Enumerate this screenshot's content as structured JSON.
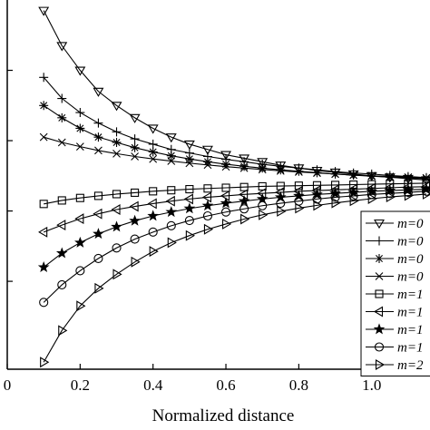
{
  "chart_data": {
    "type": "line",
    "title": "",
    "xlabel": "Normalized distance",
    "ylabel": "",
    "xlim": [
      0,
      1.16
    ],
    "ylim": [
      -0.05,
      1.0
    ],
    "x_ticks": [
      0,
      0.2,
      0.4,
      0.6,
      0.8,
      1.0
    ],
    "x_tick_labels": [
      "0",
      "0.2",
      "0.4",
      "0.6",
      "0.8",
      "1.0"
    ],
    "y_ticks": [
      0.2,
      0.4,
      0.6,
      0.8
    ],
    "grid": false,
    "legend_position": "bottom-right (clipped at right edge)",
    "x": [
      0.1,
      0.15,
      0.2,
      0.25,
      0.3,
      0.35,
      0.4,
      0.45,
      0.5,
      0.55,
      0.6,
      0.65,
      0.7,
      0.75,
      0.8,
      0.85,
      0.9,
      0.95,
      1.0,
      1.05,
      1.1,
      1.15
    ],
    "series": [
      {
        "name": "m=0",
        "marker": "triangle-down",
        "values": [
          0.97,
          0.87,
          0.8,
          0.74,
          0.7,
          0.665,
          0.635,
          0.61,
          0.59,
          0.575,
          0.56,
          0.55,
          0.54,
          0.53,
          0.522,
          0.515,
          0.51,
          0.505,
          0.5,
          0.496,
          0.492,
          0.488
        ]
      },
      {
        "name": "m=0",
        "marker": "plus",
        "values": [
          0.78,
          0.72,
          0.68,
          0.65,
          0.625,
          0.605,
          0.59,
          0.575,
          0.565,
          0.555,
          0.547,
          0.54,
          0.533,
          0.527,
          0.522,
          0.517,
          0.512,
          0.508,
          0.505,
          0.501,
          0.498,
          0.495
        ]
      },
      {
        "name": "m=0",
        "marker": "asterisk",
        "values": [
          0.7,
          0.665,
          0.635,
          0.61,
          0.595,
          0.58,
          0.568,
          0.557,
          0.548,
          0.54,
          0.533,
          0.527,
          0.522,
          0.517,
          0.513,
          0.509,
          0.505,
          0.502,
          0.499,
          0.496,
          0.494,
          0.492
        ]
      },
      {
        "name": "m=0",
        "marker": "x",
        "values": [
          0.61,
          0.595,
          0.583,
          0.572,
          0.563,
          0.555,
          0.548,
          0.542,
          0.536,
          0.531,
          0.526,
          0.522,
          0.518,
          0.514,
          0.511,
          0.508,
          0.505,
          0.502,
          0.5,
          0.498,
          0.496,
          0.494
        ]
      },
      {
        "name": "m=1",
        "marker": "square",
        "values": [
          0.42,
          0.43,
          0.437,
          0.443,
          0.448,
          0.452,
          0.456,
          0.459,
          0.462,
          0.464,
          0.466,
          0.468,
          0.47,
          0.471,
          0.472,
          0.473,
          0.474,
          0.475,
          0.476,
          0.477,
          0.478,
          0.479
        ]
      },
      {
        "name": "m=1",
        "marker": "triangle-left",
        "values": [
          0.34,
          0.36,
          0.378,
          0.392,
          0.404,
          0.413,
          0.421,
          0.428,
          0.434,
          0.439,
          0.443,
          0.447,
          0.45,
          0.453,
          0.456,
          0.458,
          0.46,
          0.462,
          0.464,
          0.466,
          0.468,
          0.469
        ]
      },
      {
        "name": "m=1",
        "marker": "star",
        "values": [
          0.24,
          0.28,
          0.31,
          0.335,
          0.355,
          0.372,
          0.386,
          0.397,
          0.407,
          0.415,
          0.422,
          0.428,
          0.434,
          0.439,
          0.443,
          0.447,
          0.45,
          0.453,
          0.456,
          0.458,
          0.46,
          0.462
        ]
      },
      {
        "name": "m=1",
        "marker": "circle",
        "values": [
          0.14,
          0.19,
          0.23,
          0.265,
          0.295,
          0.32,
          0.34,
          0.358,
          0.373,
          0.386,
          0.397,
          0.406,
          0.415,
          0.422,
          0.428,
          0.434,
          0.439,
          0.443,
          0.447,
          0.45,
          0.453,
          0.456
        ]
      },
      {
        "name": "m=2",
        "marker": "triangle-right",
        "values": [
          -0.03,
          0.06,
          0.13,
          0.18,
          0.22,
          0.255,
          0.285,
          0.31,
          0.33,
          0.348,
          0.363,
          0.377,
          0.389,
          0.399,
          0.408,
          0.416,
          0.423,
          0.429,
          0.435,
          0.44,
          0.444,
          0.448
        ]
      }
    ],
    "legend_labels": [
      "m=0",
      "m=0",
      "m=0",
      "m=0",
      "m=1",
      "m=1",
      "m=1",
      "m=1",
      "m=2"
    ]
  }
}
